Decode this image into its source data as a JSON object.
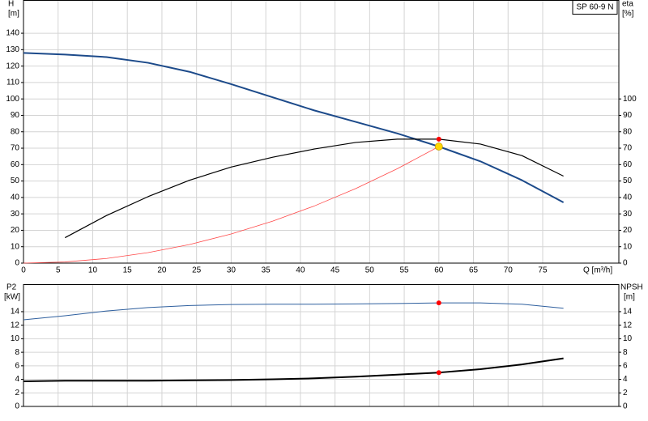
{
  "chart_data": [
    {
      "type": "line",
      "title": "SP 60-9 N",
      "x_label": "Q [m³/h]",
      "y_label": "H",
      "y_unit": "[m]",
      "y2_label": "eta",
      "y2_unit": "[%]",
      "x": [
        0,
        6,
        12,
        18,
        24,
        30,
        36,
        42,
        48,
        54,
        60,
        66,
        72,
        78
      ],
      "xlim": [
        0,
        86
      ],
      "xticks": [
        0,
        5,
        10,
        15,
        20,
        25,
        30,
        35,
        40,
        45,
        50,
        55,
        60,
        65,
        70,
        75
      ],
      "ylim": [
        0,
        160
      ],
      "yticks": [
        0,
        10,
        20,
        30,
        40,
        50,
        60,
        70,
        80,
        90,
        100,
        110,
        120,
        130,
        140
      ],
      "y2lim": [
        0,
        160
      ],
      "y2ticks": [
        0,
        10,
        20,
        30,
        40,
        50,
        60,
        70,
        80,
        90,
        100
      ],
      "grid": true,
      "series": [
        {
          "color": "#1c4a8a",
          "line_width": 2,
          "values": [
            128,
            127,
            125.5,
            122,
            116.5,
            109,
            101,
            93,
            86,
            79,
            71,
            62,
            50.5,
            37
          ]
        },
        {
          "color": "#000000",
          "line_width": 1.2,
          "axis": "y2",
          "values": [
            null,
            15.5,
            29,
            40.5,
            50.5,
            58.5,
            64.5,
            69.5,
            73.5,
            75.5,
            75.5,
            72.5,
            65.5,
            53
          ]
        },
        {
          "color": "#ff4a4a",
          "line_width": 0.8,
          "values": [
            0,
            0.71,
            2.84,
            6.39,
            11.36,
            17.75,
            25.56,
            34.79,
            45.44,
            57.51,
            71,
            null,
            null,
            null
          ]
        }
      ],
      "markers": [
        {
          "x": 60,
          "y": 75.5,
          "axis": "y2",
          "color": "#ff0000"
        },
        {
          "x": 60,
          "y": 71,
          "color": "#ffd700"
        }
      ]
    },
    {
      "type": "line",
      "y_label": "P2",
      "y_unit": "[kW]",
      "y2_label": "NPSH",
      "y2_unit": "[m]",
      "x": [
        0,
        6,
        12,
        18,
        24,
        30,
        36,
        42,
        48,
        54,
        60,
        66,
        72,
        78
      ],
      "xlim": [
        0,
        86
      ],
      "ylim": [
        0,
        18
      ],
      "yticks": [
        0,
        2,
        4,
        6,
        8,
        10,
        12,
        14
      ],
      "y2lim": [
        0,
        18
      ],
      "y2ticks": [
        0,
        2,
        4,
        6,
        8,
        10,
        12,
        14
      ],
      "grid": true,
      "series": [
        {
          "color": "#2e5f9e",
          "line_width": 1,
          "values": [
            12.8,
            13.4,
            14.1,
            14.6,
            14.9,
            15.05,
            15.1,
            15.1,
            15.15,
            15.2,
            15.3,
            15.3,
            15.1,
            14.5
          ]
        },
        {
          "color": "#000000",
          "line_width": 2,
          "axis": "y2",
          "values": [
            3.7,
            3.8,
            3.8,
            3.8,
            3.85,
            3.9,
            4.0,
            4.15,
            4.4,
            4.7,
            5.0,
            5.5,
            6.2,
            7.1
          ]
        }
      ],
      "markers": [
        {
          "x": 60,
          "y": 15.3,
          "color": "#ff0000"
        },
        {
          "x": 60,
          "y": 5.0,
          "axis": "y2",
          "color": "#ff0000"
        }
      ]
    }
  ]
}
